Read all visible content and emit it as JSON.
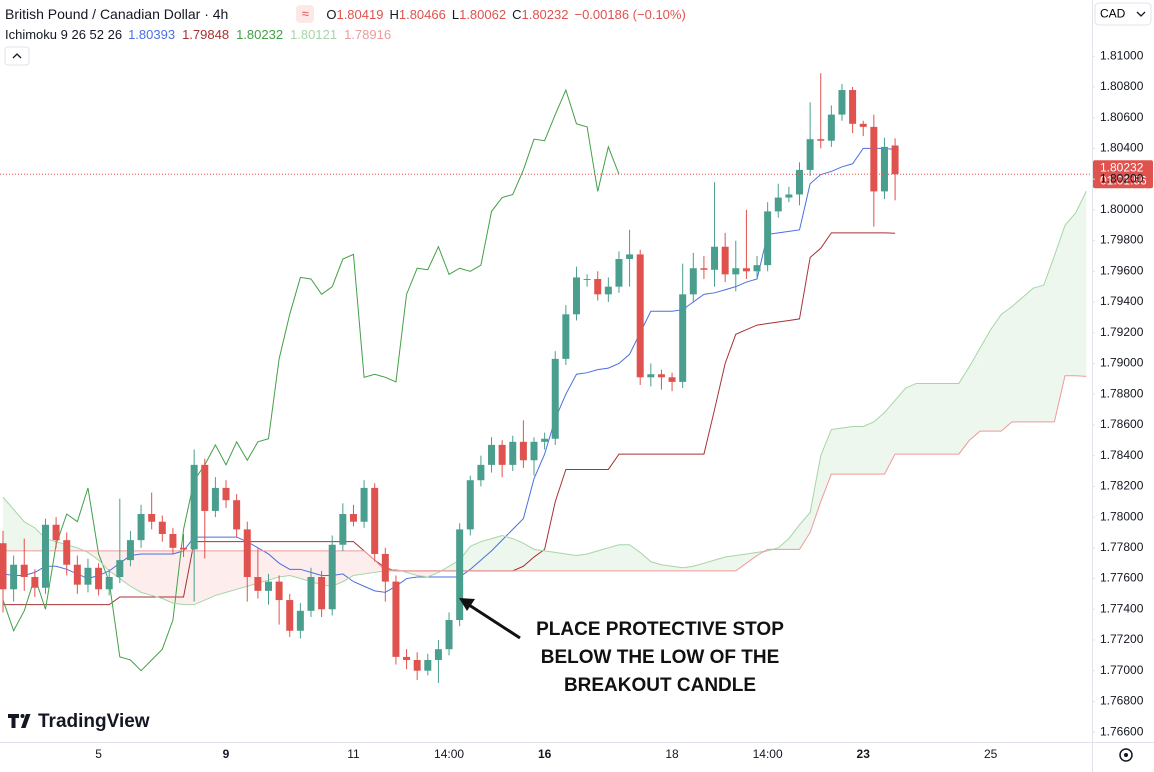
{
  "chart_data": {
    "type": "candlestick",
    "title": "British Pound / Canadian Dollar · 4h",
    "ohlc_keys": [
      "O",
      "H",
      "L",
      "C"
    ],
    "change": "−0.00186 (−0.10%)",
    "currency": "CAD",
    "price_timer": "01:01:56",
    "brand": "TradingView",
    "annotation": [
      "PLACE PROTECTIVE STOP",
      "BELOW THE LOW OF THE",
      "BREAKOUT CANDLE"
    ],
    "up_color": "#4a9e8e",
    "down_color": "#e0524e",
    "cloud_colors": {
      "up": "rgba(76,175,80,0.10)",
      "down": "rgba(239,83,80,0.10)"
    },
    "ylim": [
      1.76536,
      1.81366
    ],
    "yticks": [
      {
        "value": 1.766,
        "label": "1.76600"
      },
      {
        "value": 1.768,
        "label": "1.76800"
      },
      {
        "value": 1.77,
        "label": "1.77000"
      },
      {
        "value": 1.772,
        "label": "1.77200"
      },
      {
        "value": 1.774,
        "label": "1.77400"
      },
      {
        "value": 1.776,
        "label": "1.77600"
      },
      {
        "value": 1.778,
        "label": "1.77800"
      },
      {
        "value": 1.78,
        "label": "1.78000"
      },
      {
        "value": 1.782,
        "label": "1.78200"
      },
      {
        "value": 1.784,
        "label": "1.78400"
      },
      {
        "value": 1.786,
        "label": "1.78600"
      },
      {
        "value": 1.788,
        "label": "1.78800"
      },
      {
        "value": 1.79,
        "label": "1.79000"
      },
      {
        "value": 1.792,
        "label": "1.79200"
      },
      {
        "value": 1.794,
        "label": "1.79400"
      },
      {
        "value": 1.796,
        "label": "1.79600"
      },
      {
        "value": 1.798,
        "label": "1.79800"
      },
      {
        "value": 1.8,
        "label": "1.80000"
      },
      {
        "value": 1.802,
        "label": "1.80200"
      },
      {
        "value": 1.804,
        "label": "1.80400"
      },
      {
        "value": 1.806,
        "label": "1.80600"
      },
      {
        "value": 1.808,
        "label": "1.80800"
      },
      {
        "value": 1.81,
        "label": "1.81000"
      }
    ],
    "categories": [
      null,
      null,
      null,
      null,
      null,
      null,
      null,
      null,
      null,
      "5",
      null,
      null,
      null,
      null,
      null,
      null,
      null,
      null,
      null,
      null,
      null,
      "9",
      null,
      null,
      null,
      null,
      null,
      null,
      null,
      null,
      null,
      null,
      null,
      "11",
      null,
      null,
      null,
      null,
      null,
      null,
      null,
      null,
      "14:00",
      null,
      null,
      null,
      null,
      null,
      null,
      null,
      null,
      "16",
      null,
      null,
      null,
      null,
      null,
      null,
      null,
      null,
      null,
      null,
      null,
      "18",
      null,
      null,
      null,
      null,
      null,
      null,
      null,
      null,
      "14:00",
      null,
      null,
      null,
      null,
      null,
      null,
      null,
      null,
      "23",
      null,
      null,
      null,
      null,
      null,
      null,
      null,
      null,
      null,
      null,
      null,
      "25",
      null,
      null,
      null,
      null,
      null,
      null,
      null,
      null,
      null
    ],
    "open": [
      1.7783,
      1.7753,
      1.7769,
      1.7761,
      1.7754,
      1.7795,
      1.7785,
      1.7769,
      1.7756,
      1.7767,
      1.7753,
      1.7761,
      1.7772,
      1.7785,
      1.7802,
      1.7797,
      1.7789,
      1.778,
      1.7779,
      1.7834,
      1.7804,
      1.7819,
      1.7811,
      1.7792,
      1.7761,
      1.7752,
      1.7758,
      1.7746,
      1.7726,
      1.7739,
      1.7761,
      1.774,
      1.7782,
      1.7802,
      1.7797,
      1.7819,
      1.7776,
      1.7758,
      1.7709,
      1.7707,
      1.77,
      1.7707,
      1.7714,
      1.7733,
      1.7792,
      1.7824,
      1.7834,
      1.7847,
      1.7834,
      1.7849,
      1.7837,
      1.7849,
      1.7851,
      1.7903,
      1.7932,
      1.7955,
      1.7955,
      1.7945,
      1.795,
      1.7968,
      1.7971,
      1.7891,
      1.7893,
      1.7891,
      1.7888,
      1.7945,
      1.7962,
      1.7961,
      1.7976,
      1.7958,
      1.7962,
      1.796,
      1.7964,
      1.7999,
      1.8008,
      1.801,
      1.8026,
      1.8046,
      1.8045,
      1.8062,
      1.8078,
      1.8056,
      1.8054,
      1.8012,
      1.80419,
      null,
      null,
      null,
      null,
      null,
      null,
      null,
      null,
      null,
      null,
      null,
      null,
      null,
      null,
      null,
      null,
      null,
      null
    ],
    "high": [
      1.7791,
      1.7775,
      1.7786,
      1.7766,
      1.7799,
      1.78,
      1.779,
      1.7775,
      1.7773,
      1.777,
      1.7766,
      1.7812,
      1.7791,
      1.7808,
      1.7816,
      1.7801,
      1.7793,
      1.7789,
      1.7844,
      1.7838,
      1.7826,
      1.7824,
      1.7815,
      1.7797,
      1.778,
      1.7763,
      1.7762,
      1.775,
      1.7744,
      1.7767,
      1.7765,
      1.7788,
      1.7809,
      1.7808,
      1.7824,
      1.7822,
      1.778,
      1.7762,
      1.7714,
      1.7712,
      1.7711,
      1.772,
      1.7738,
      1.7796,
      1.7827,
      1.784,
      1.7852,
      1.785,
      1.7853,
      1.7863,
      1.7852,
      1.7855,
      1.7908,
      1.7938,
      1.7963,
      1.7958,
      1.796,
      1.7956,
      1.7973,
      1.7987,
      1.7974,
      1.79,
      1.7896,
      1.7894,
      1.7965,
      1.7972,
      1.797,
      1.8018,
      1.7985,
      1.798,
      1.8,
      1.797,
      1.8005,
      1.8017,
      1.8015,
      1.8031,
      1.807,
      1.8089,
      1.8068,
      1.8082,
      1.808,
      1.8058,
      1.8062,
      1.8047,
      1.80466,
      null,
      null,
      null,
      null,
      null,
      null,
      null,
      null,
      null,
      null,
      null,
      null,
      null,
      null,
      null,
      null,
      null,
      null
    ],
    "low": [
      1.7738,
      1.7745,
      1.7752,
      1.7748,
      1.775,
      1.778,
      1.7762,
      1.775,
      1.7751,
      1.7749,
      1.7749,
      1.7757,
      1.7768,
      1.778,
      1.7792,
      1.7784,
      1.7776,
      1.7774,
      1.7745,
      1.7773,
      1.78,
      1.7806,
      1.7787,
      1.7745,
      1.7747,
      1.7743,
      1.773,
      1.7722,
      1.7721,
      1.7735,
      1.7735,
      1.7736,
      1.7778,
      1.7794,
      1.7793,
      1.7771,
      1.7745,
      1.7704,
      1.7701,
      1.7694,
      1.7697,
      1.7692,
      1.771,
      1.7729,
      1.7788,
      1.782,
      1.7829,
      1.7826,
      1.783,
      1.7832,
      1.7827,
      1.7844,
      1.7847,
      1.7899,
      1.7928,
      1.795,
      1.7941,
      1.794,
      1.7946,
      1.795,
      1.7886,
      1.7885,
      1.7883,
      1.7882,
      1.7884,
      1.794,
      1.7955,
      1.795,
      1.7953,
      1.7947,
      1.7955,
      1.7956,
      1.796,
      1.7995,
      1.8005,
      1.8003,
      1.8022,
      1.804,
      1.8041,
      1.8058,
      1.805,
      1.8048,
      1.7989,
      1.8007,
      1.80062,
      null,
      null,
      null,
      null,
      null,
      null,
      null,
      null,
      null,
      null,
      null,
      null,
      null,
      null,
      null,
      null,
      null,
      null
    ],
    "close": [
      1.7753,
      1.7769,
      1.7761,
      1.7754,
      1.7795,
      1.7785,
      1.7769,
      1.7756,
      1.7767,
      1.7753,
      1.7761,
      1.7772,
      1.7785,
      1.7802,
      1.7797,
      1.7789,
      1.778,
      1.7779,
      1.7834,
      1.7804,
      1.7819,
      1.7811,
      1.7792,
      1.7761,
      1.7752,
      1.7758,
      1.7746,
      1.7726,
      1.7739,
      1.7761,
      1.774,
      1.7782,
      1.7802,
      1.7797,
      1.7819,
      1.7776,
      1.7758,
      1.7709,
      1.7707,
      1.77,
      1.7707,
      1.7714,
      1.7733,
      1.7792,
      1.7824,
      1.7834,
      1.7847,
      1.7834,
      1.7849,
      1.7837,
      1.7849,
      1.7851,
      1.7903,
      1.7932,
      1.7956,
      1.7955,
      1.7945,
      1.795,
      1.7968,
      1.7971,
      1.7891,
      1.7893,
      1.7891,
      1.7888,
      1.7945,
      1.7962,
      1.7961,
      1.7976,
      1.7958,
      1.7962,
      1.796,
      1.7964,
      1.7999,
      1.8008,
      1.801,
      1.8026,
      1.8046,
      1.8045,
      1.8062,
      1.8078,
      1.8056,
      1.8054,
      1.8012,
      1.8041,
      1.80232,
      null,
      null,
      null,
      null,
      null,
      null,
      null,
      null,
      null,
      null,
      null,
      null,
      null,
      null,
      null,
      null,
      null,
      null
    ],
    "indicator": {
      "label": "Ichimoku 9 26 52 26",
      "lines": [
        {
          "color": "#4a6fe3",
          "values": [
            1.7763,
            1.7762,
            1.7762,
            1.7764,
            1.7768,
            1.7768,
            1.7766,
            1.7763,
            1.776,
            1.7762,
            1.7765,
            1.777,
            1.7775,
            1.7776,
            1.7776,
            1.7776,
            1.7776,
            1.7778,
            1.7787,
            1.7787,
            1.7787,
            1.7787,
            1.7787,
            1.7784,
            1.778,
            1.7776,
            1.777,
            1.7766,
            1.7766,
            1.7764,
            1.7762,
            1.7762,
            1.7763,
            1.7758,
            1.7755,
            1.7752,
            1.7751,
            1.7755,
            1.776,
            1.7761,
            1.7761,
            1.7761,
            1.7761,
            1.7761,
            1.7766,
            1.7772,
            1.7778,
            1.7785,
            1.7792,
            1.7799,
            1.7825,
            1.7841,
            1.7864,
            1.788,
            1.7893,
            1.7894,
            1.7896,
            1.7897,
            1.79,
            1.7906,
            1.792,
            1.7934,
            1.7934,
            1.7934,
            1.7935,
            1.794,
            1.7945,
            1.7946,
            1.7948,
            1.795,
            1.7953,
            1.7955,
            1.7984,
            1.7985,
            1.7986,
            1.7987,
            1.8017,
            1.8023,
            1.8025,
            1.8028,
            1.803,
            1.804,
            1.804,
            1.804,
            1.80393,
            null,
            null,
            null,
            null,
            null,
            null,
            null,
            null,
            null,
            null,
            null,
            null,
            null,
            null,
            null,
            null,
            null,
            null
          ]
        },
        {
          "color": "#a83232",
          "values": [
            1.7743,
            1.7743,
            1.7743,
            1.7743,
            1.7743,
            1.7743,
            1.7743,
            1.7743,
            1.7743,
            1.7743,
            1.7743,
            1.7748,
            1.7748,
            1.7748,
            1.7748,
            1.7748,
            1.7748,
            1.7748,
            1.7784,
            1.7784,
            1.7784,
            1.7784,
            1.7784,
            1.7784,
            1.7784,
            1.7784,
            1.7784,
            1.7784,
            1.7784,
            1.7784,
            1.7784,
            1.7784,
            1.7784,
            1.7784,
            1.7778,
            1.7772,
            1.7767,
            1.7765,
            1.7765,
            1.7765,
            1.7765,
            1.7765,
            1.7765,
            1.7765,
            1.7765,
            1.7765,
            1.7765,
            1.7765,
            1.7765,
            1.7768,
            1.7774,
            1.7779,
            1.781,
            1.7831,
            1.7831,
            1.7831,
            1.7831,
            1.7831,
            1.7841,
            1.7841,
            1.7841,
            1.7841,
            1.7841,
            1.7841,
            1.7841,
            1.7841,
            1.7841,
            1.787,
            1.79,
            1.7919,
            1.7922,
            1.7925,
            1.7926,
            1.7927,
            1.7928,
            1.7929,
            1.7969,
            1.7975,
            1.7985,
            1.7985,
            1.7985,
            1.7985,
            1.7985,
            1.7985,
            1.79848,
            null,
            null,
            null,
            null,
            null,
            null,
            null,
            null,
            null,
            null,
            null,
            null,
            null,
            null,
            null,
            null,
            null,
            null
          ]
        },
        {
          "color": "#43a047",
          "values": [
            1.7746,
            1.7726,
            1.7739,
            1.7761,
            1.774,
            1.7782,
            1.7802,
            1.7797,
            1.7819,
            1.7776,
            1.7758,
            1.7709,
            1.7707,
            1.77,
            1.7707,
            1.7714,
            1.7733,
            1.7792,
            1.7824,
            1.7834,
            1.7847,
            1.7834,
            1.7849,
            1.7837,
            1.7849,
            1.7851,
            1.7903,
            1.7932,
            1.7956,
            1.7955,
            1.7945,
            1.795,
            1.7968,
            1.7971,
            1.7891,
            1.7893,
            1.7891,
            1.7888,
            1.7945,
            1.7962,
            1.7961,
            1.7976,
            1.7958,
            1.7962,
            1.796,
            1.7964,
            1.7999,
            1.8008,
            1.801,
            1.8026,
            1.8046,
            1.8045,
            1.8062,
            1.8078,
            1.8056,
            1.8054,
            1.8012,
            1.8041,
            1.80232,
            null,
            null,
            null,
            null,
            null,
            null,
            null,
            null,
            null,
            null,
            null,
            null,
            null,
            null,
            null,
            null,
            null,
            null,
            null,
            null,
            null,
            null,
            null,
            null,
            null,
            null,
            null,
            null,
            null,
            null,
            null,
            null,
            null,
            null,
            null,
            null,
            null,
            null,
            null
          ]
        },
        {
          "color": "#a5d6a7",
          "values": [
            1.7813,
            1.7805,
            1.7797,
            1.7793,
            1.7786,
            1.7784,
            1.7782,
            1.778,
            1.7777,
            1.7772,
            1.7765,
            1.776,
            1.7755,
            1.7751,
            1.7749,
            1.7747,
            1.7744,
            1.7743,
            1.7743,
            1.7746,
            1.7749,
            1.7751,
            1.7753,
            1.7755,
            1.7757,
            1.7759,
            1.7761,
            1.7762,
            1.776,
            1.7758,
            1.7756,
            1.7755,
            1.7758,
            1.7762,
            1.7763,
            1.7764,
            1.7765,
            1.7766,
            1.7764,
            1.7762,
            1.7761,
            1.7764,
            1.7768,
            1.7772,
            1.7781,
            1.7784,
            1.7786,
            1.7788,
            1.7786,
            1.7783,
            1.7779,
            1.7778,
            1.7777,
            1.7776,
            1.7775,
            1.7776,
            1.7778,
            1.778,
            1.7782,
            1.7782,
            1.7777,
            1.7771,
            1.7769,
            1.7768,
            1.7767,
            1.7768,
            1.777,
            1.7772,
            1.7774,
            1.7775,
            1.7776,
            1.7777,
            1.7778,
            1.778,
            1.7786,
            1.7795,
            1.7803,
            1.784,
            1.7857,
            1.7858,
            1.7859,
            1.7859,
            1.7862,
            1.7868,
            1.7876,
            1.7884,
            1.7887,
            1.7887,
            1.7887,
            1.7887,
            1.7887,
            1.7898,
            1.791,
            1.7922,
            1.7932,
            1.7937,
            1.7943,
            1.7949,
            1.7951,
            1.797,
            1.799,
            1.7998,
            1.80121
          ]
        },
        {
          "color": "#ef9a9a",
          "values": [
            1.7778,
            1.7778,
            1.7778,
            1.7778,
            1.7778,
            1.7778,
            1.7778,
            1.7778,
            1.7778,
            1.7778,
            1.7778,
            1.7778,
            1.7778,
            1.7778,
            1.7778,
            1.7778,
            1.7778,
            1.7778,
            1.7778,
            1.7778,
            1.7778,
            1.7778,
            1.7778,
            1.7778,
            1.7778,
            1.7778,
            1.7778,
            1.7778,
            1.7778,
            1.7778,
            1.7778,
            1.7778,
            1.7778,
            1.7778,
            1.7778,
            1.7772,
            1.7765,
            1.7765,
            1.7765,
            1.7765,
            1.7765,
            1.7765,
            1.7765,
            1.7765,
            1.7765,
            1.7765,
            1.7765,
            1.7765,
            1.7765,
            1.7765,
            1.7765,
            1.7765,
            1.7765,
            1.7765,
            1.7765,
            1.7765,
            1.7765,
            1.7765,
            1.7765,
            1.7765,
            1.7765,
            1.7765,
            1.7765,
            1.7765,
            1.7765,
            1.7765,
            1.7765,
            1.7765,
            1.7765,
            1.7765,
            1.777,
            1.7775,
            1.7779,
            1.7779,
            1.7779,
            1.7779,
            1.779,
            1.781,
            1.7828,
            1.7828,
            1.7828,
            1.7828,
            1.7828,
            1.7828,
            1.7841,
            1.7841,
            1.7841,
            1.7841,
            1.7841,
            1.7841,
            1.7841,
            1.785,
            1.7856,
            1.7856,
            1.7856,
            1.7862,
            1.7862,
            1.7862,
            1.7862,
            1.7862,
            1.7892,
            1.7892,
            1.78916
          ]
        }
      ]
    }
  }
}
